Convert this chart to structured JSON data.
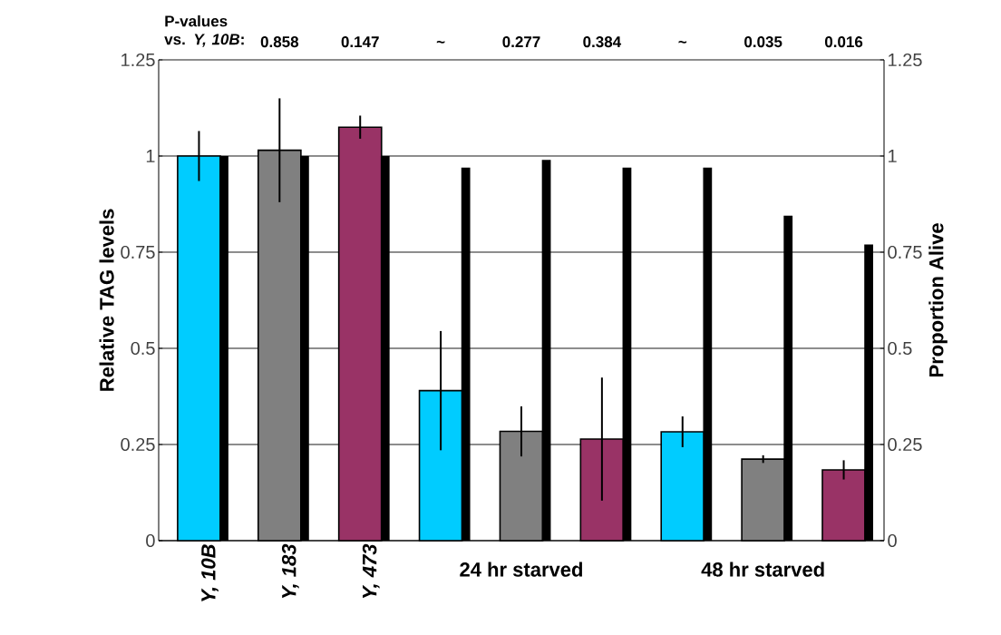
{
  "chart_data": {
    "type": "bar",
    "ylabel": "Relative TAG levels",
    "y2label": "Proportion Alive",
    "categories": [
      "Y, 10B",
      "Y, 183",
      "Y, 473",
      null,
      "24 hr starved",
      null,
      null,
      "48 hr starved",
      null
    ],
    "series": [
      {
        "colors": [
          "#00ccff",
          "#808080",
          "#993366",
          "#00ccff",
          "#808080",
          "#993366",
          "#00ccff",
          "#808080",
          "#993366"
        ],
        "values": [
          1.0,
          1.015,
          1.075,
          0.39,
          0.284,
          0.264,
          0.283,
          0.212,
          0.184
        ],
        "errors": [
          0.065,
          0.135,
          0.03,
          0.155,
          0.065,
          0.16,
          0.04,
          0.01,
          0.025
        ]
      },
      {
        "axis": "y2",
        "color": "#000000",
        "values": [
          1.0,
          1.0,
          1.0,
          0.97,
          0.99,
          0.97,
          0.97,
          0.845,
          0.77
        ]
      }
    ],
    "ylim": [
      0,
      1.25
    ],
    "yticks": [
      0,
      0.25,
      0.5,
      0.75,
      1,
      1.25
    ],
    "y2lim": [
      0,
      1.25
    ],
    "y2ticks": [
      0,
      0.25,
      0.5,
      0.75,
      1,
      1.25
    ],
    "grid": "y",
    "annotations": [
      "P-values vs. *Y, 10B*:",
      "0.858",
      "0.147",
      "~",
      "0.277",
      "0.384",
      "~",
      "0.035",
      "0.016"
    ]
  }
}
